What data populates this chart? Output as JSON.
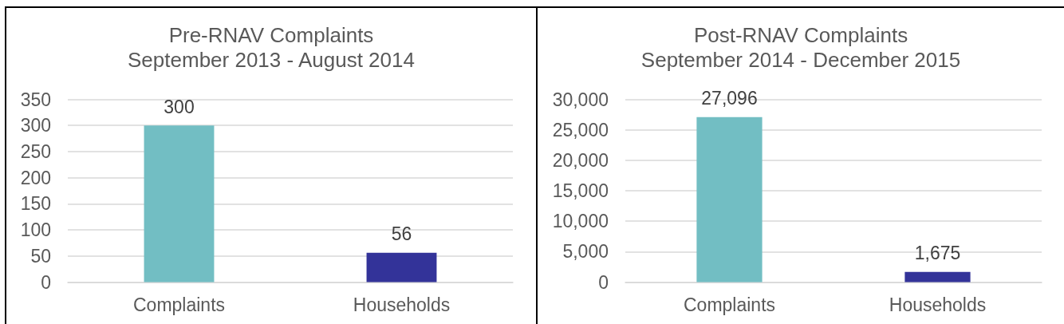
{
  "chart_data": [
    {
      "type": "bar",
      "title": "Pre-RNAV Complaints",
      "subtitle": "September 2013 - August 2014",
      "categories": [
        "Complaints",
        "Households"
      ],
      "values": [
        300,
        56
      ],
      "colors": [
        "#72bec3",
        "#333399"
      ],
      "ylim": [
        0,
        350
      ],
      "yticks": [
        0,
        50,
        100,
        150,
        200,
        250,
        300,
        350
      ],
      "grid": "y",
      "data_labels": true
    },
    {
      "type": "bar",
      "title": "Post-RNAV Complaints",
      "subtitle": "September 2014 - December 2015",
      "categories": [
        "Complaints",
        "Households"
      ],
      "values": [
        27096,
        1675
      ],
      "value_labels": [
        "27,096",
        "1,675"
      ],
      "colors": [
        "#72bec3",
        "#333399"
      ],
      "ylim": [
        0,
        30000
      ],
      "yticks": [
        0,
        {
          "value": 5000,
          "label": "5,000"
        },
        {
          "value": 10000,
          "label": "10,000"
        },
        {
          "value": 15000,
          "label": "15,000"
        },
        {
          "value": 20000,
          "label": "20,000"
        },
        {
          "value": 25000,
          "label": "25,000"
        },
        {
          "value": 30000,
          "label": "30,000"
        }
      ],
      "grid": "y"
    }
  ]
}
